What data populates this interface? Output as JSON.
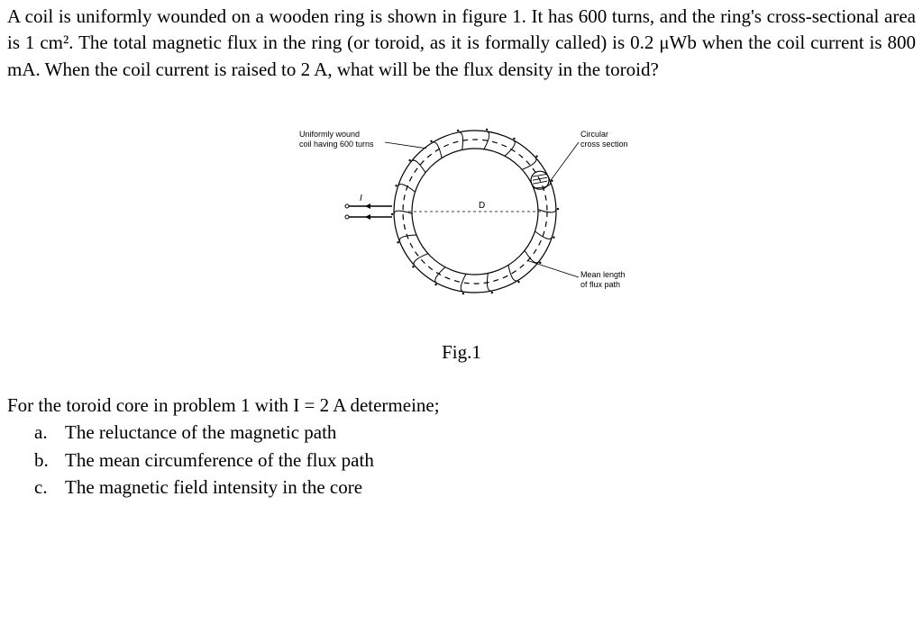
{
  "problem": {
    "text": "A coil is uniformly wounded on a wooden ring is shown in figure 1. It has 600 turns, and the ring's cross-sectional area is 1 cm². The total magnetic flux in the ring (or toroid, as it is formally called) is 0.2 μWb when the coil current is 800 mA. When the coil current is raised to 2 A, what will be the flux density in the toroid?"
  },
  "figure": {
    "caption": "Fig.1",
    "labels": {
      "coil": "Uniformly wound\ncoil having 600 turns",
      "cross_section": "Circular\ncross section",
      "flux_path": "Mean length\nof flux path",
      "current_symbol": "I",
      "diameter_symbol": "D"
    },
    "style": {
      "outer_radius": 90,
      "inner_radius": 70,
      "mean_radius": 80,
      "stroke_color": "#000000",
      "stroke_width": 1.2,
      "label_fontsize": 10,
      "label_color": "#000000"
    }
  },
  "followup": {
    "intro": "For the toroid core in problem 1 with I = 2 A determeine;",
    "items": [
      {
        "letter": "a.",
        "text": "The reluctance of the magnetic path"
      },
      {
        "letter": "b.",
        "text": "The mean circumference of the flux path"
      },
      {
        "letter": "c.",
        "text": "The magnetic field intensity in the core"
      }
    ]
  }
}
